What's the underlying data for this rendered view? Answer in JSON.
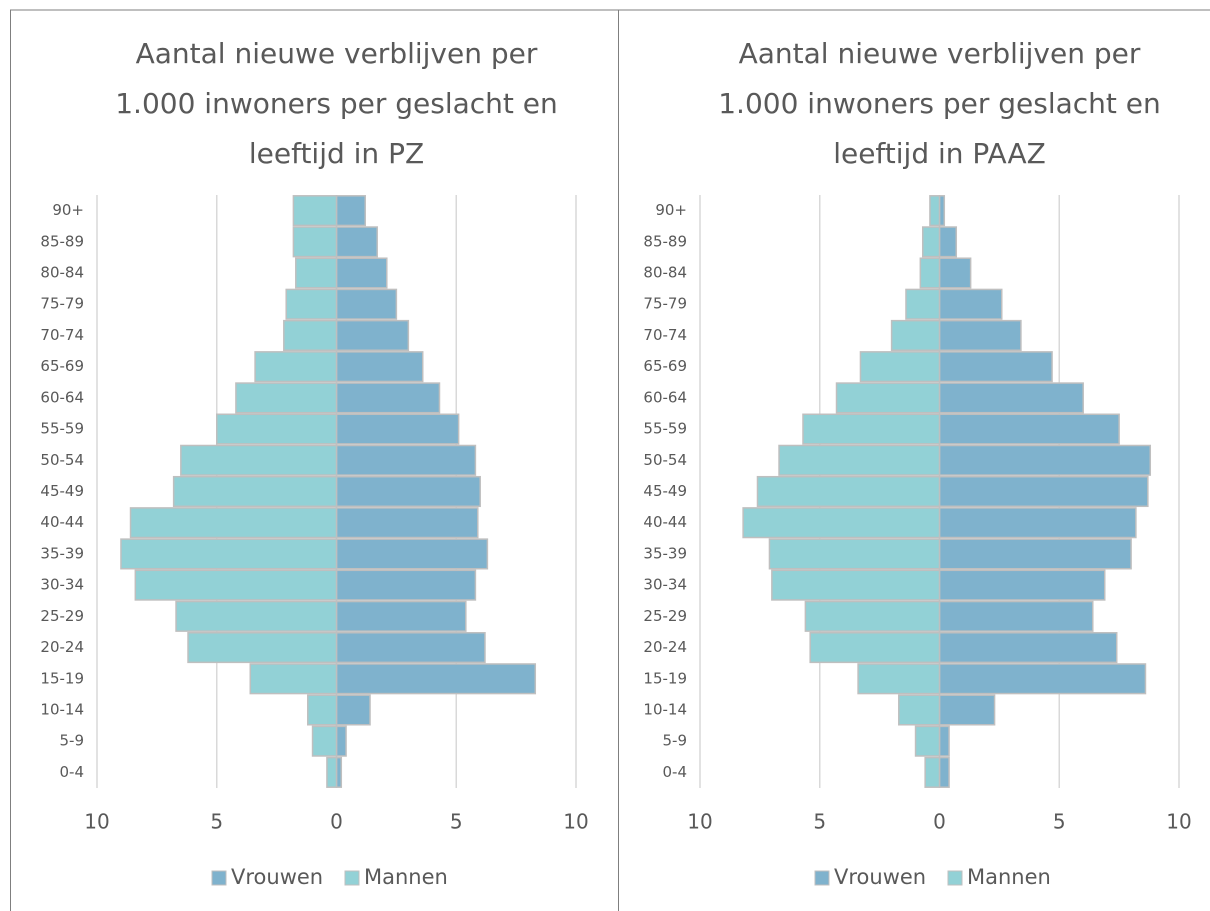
{
  "chart_data": [
    {
      "type": "bar",
      "title": [
        "Aantal nieuwe verblijven per",
        "1.000 inwoners per geslacht en",
        "leeftijd in PZ"
      ],
      "categories": [
        "90+",
        "85-89",
        "80-84",
        "75-79",
        "70-74",
        "65-69",
        "60-64",
        "55-59",
        "50-54",
        "45-49",
        "40-44",
        "35-39",
        "30-34",
        "25-29",
        "20-24",
        "15-19",
        "10-14",
        "5-9",
        "0-4"
      ],
      "series": [
        {
          "name": "Vrouwen",
          "color": "#7fb2cd",
          "values": [
            1.2,
            1.7,
            2.1,
            2.5,
            3.0,
            3.6,
            4.3,
            5.1,
            5.8,
            6.0,
            5.9,
            6.3,
            5.8,
            5.4,
            6.2,
            8.3,
            1.4,
            0.4,
            0.2
          ]
        },
        {
          "name": "Mannen",
          "color": "#92d1d6",
          "values": [
            -1.8,
            -1.8,
            -1.7,
            -2.1,
            -2.2,
            -3.4,
            -4.2,
            -5.0,
            -6.5,
            -6.8,
            -8.6,
            -9.0,
            -8.4,
            -6.7,
            -6.2,
            -3.6,
            -1.2,
            -1.0,
            -0.4
          ]
        }
      ],
      "xlim": [
        -10,
        10
      ],
      "xticks": [
        {
          "value": -10,
          "label": "10"
        },
        {
          "value": -5,
          "label": "5"
        },
        0,
        5,
        10
      ],
      "grid": true,
      "legend": "bottom"
    },
    {
      "type": "bar",
      "title": [
        "Aantal nieuwe verblijven per",
        "1.000 inwoners per geslacht en",
        "leeftijd in PAAZ"
      ],
      "categories": [
        "90+",
        "85-89",
        "80-84",
        "75-79",
        "70-74",
        "65-69",
        "60-64",
        "55-59",
        "50-54",
        "45-49",
        "40-44",
        "35-39",
        "30-34",
        "25-29",
        "20-24",
        "15-19",
        "10-14",
        "5-9",
        "0-4"
      ],
      "series": [
        {
          "name": "Vrouwen",
          "color": "#7fb2cd",
          "values": [
            0.2,
            0.7,
            1.3,
            2.6,
            3.4,
            4.7,
            6.0,
            7.5,
            8.8,
            8.7,
            8.2,
            8.0,
            6.9,
            6.4,
            7.4,
            8.6,
            2.3,
            0.4,
            0.4
          ]
        },
        {
          "name": "Mannen",
          "color": "#92d1d6",
          "values": [
            -0.4,
            -0.7,
            -0.8,
            -1.4,
            -2.0,
            -3.3,
            -4.3,
            -5.7,
            -6.7,
            -7.6,
            -8.2,
            -7.1,
            -7.0,
            -5.6,
            -5.4,
            -3.4,
            -1.7,
            -1.0,
            -0.6
          ]
        }
      ],
      "xlim": [
        -10,
        10
      ],
      "xticks": [
        {
          "value": -10,
          "label": "10"
        },
        {
          "value": -5,
          "label": "5"
        },
        0,
        5,
        10
      ],
      "grid": true,
      "legend": "bottom"
    }
  ]
}
